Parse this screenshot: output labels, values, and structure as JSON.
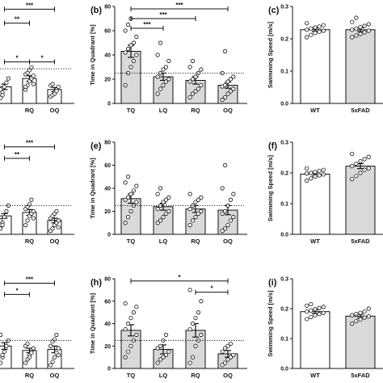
{
  "colors": {
    "wt_bar": "#ffffff",
    "fad_bar": "#d9d9d9",
    "stroke": "#111111",
    "point_fill": "#ffffff"
  },
  "panels": [
    {
      "letter": "",
      "chart_data": {
        "type": "bar",
        "ylabel": "",
        "ylim": [
          0,
          70
        ],
        "yticks": [],
        "categories": [
          "",
          "RQ",
          "OQ"
        ],
        "values": [
          12,
          18,
          10
        ],
        "errors": [
          2,
          2,
          1.5
        ],
        "points": [
          [
            4,
            8,
            12,
            15,
            18,
            10,
            6
          ],
          [
            10,
            13,
            16,
            18,
            20,
            21,
            22,
            24,
            26,
            14,
            12
          ],
          [
            5,
            6,
            8,
            10,
            12,
            13,
            14,
            7,
            9
          ]
        ],
        "fills": [
          "#ffffff",
          "#ffffff",
          "#ffffff"
        ],
        "chance_line": 25,
        "significance": [
          {
            "from": 0,
            "to": 2,
            "y": 68,
            "label": "***"
          },
          {
            "from": 0,
            "to": 1,
            "y": 58,
            "label": "**"
          },
          {
            "from": 0,
            "to": 0,
            "y": 50,
            "label": ""
          },
          {
            "from": 0,
            "to": 1,
            "y": 30,
            "label": "*"
          },
          {
            "from": 1,
            "to": 2,
            "y": 30,
            "label": "*"
          }
        ]
      }
    },
    {
      "letter": "(b)",
      "chart_data": {
        "type": "bar",
        "ylabel": "Time in Quadrant [%]",
        "ylim": [
          0,
          80
        ],
        "yticks": [
          0,
          20,
          40,
          60,
          80
        ],
        "categories": [
          "TQ",
          "LQ",
          "RQ",
          "OQ"
        ],
        "values": [
          43,
          22,
          19,
          15
        ],
        "errors": [
          5,
          3,
          3,
          2.5
        ],
        "points": [
          [
            15,
            25,
            30,
            35,
            40,
            42,
            45,
            48,
            50,
            55,
            60,
            65,
            70
          ],
          [
            8,
            12,
            15,
            18,
            20,
            22,
            25,
            28,
            30,
            35,
            40,
            50
          ],
          [
            5,
            8,
            10,
            12,
            15,
            18,
            20,
            22,
            25,
            28,
            30,
            35
          ],
          [
            3,
            5,
            8,
            10,
            12,
            14,
            15,
            18,
            20,
            22,
            25,
            43
          ]
        ],
        "fills": [
          "#d9d9d9",
          "#d9d9d9",
          "#d9d9d9",
          "#d9d9d9"
        ],
        "chance_line": 25,
        "significance": [
          {
            "from": 0,
            "to": 3,
            "y": 78,
            "label": "***"
          },
          {
            "from": 0,
            "to": 2,
            "y": 70,
            "label": "***"
          },
          {
            "from": 0,
            "to": 1,
            "y": 62,
            "label": "***"
          }
        ]
      }
    },
    {
      "letter": "(c)",
      "chart_data": {
        "type": "bar",
        "ylabel": "Swimming Speed [m/s]",
        "ylim": [
          0,
          0.3
        ],
        "yticks": [
          0.0,
          0.1,
          0.2,
          0.3
        ],
        "categories": [
          "WT",
          "5xFAD"
        ],
        "values": [
          0.228,
          0.228
        ],
        "errors": [
          0.005,
          0.006
        ],
        "points": [
          [
            0.205,
            0.212,
            0.218,
            0.222,
            0.225,
            0.228,
            0.232,
            0.235,
            0.238,
            0.242,
            0.248
          ],
          [
            0.205,
            0.21,
            0.215,
            0.22,
            0.225,
            0.228,
            0.232,
            0.236,
            0.24,
            0.245,
            0.252,
            0.265
          ]
        ],
        "fills": [
          "#ffffff",
          "#d9d9d9"
        ],
        "chance_line": null,
        "significance": []
      }
    },
    {
      "letter": "",
      "chart_data": {
        "type": "bar",
        "ylabel": "",
        "ylim": [
          0,
          80
        ],
        "yticks": [],
        "categories": [
          "",
          "RQ",
          "OQ"
        ],
        "values": [
          16,
          19,
          12
        ],
        "errors": [
          2,
          2.5,
          2
        ],
        "points": [
          [
            5,
            10,
            15,
            20,
            25,
            12,
            8
          ],
          [
            8,
            12,
            16,
            18,
            20,
            22,
            24,
            26,
            30,
            14
          ],
          [
            3,
            5,
            8,
            10,
            12,
            14,
            16,
            18,
            20,
            6
          ]
        ],
        "fills": [
          "#ffffff",
          "#ffffff",
          "#ffffff"
        ],
        "chance_line": 25,
        "significance": [
          {
            "from": 0,
            "to": 2,
            "y": 76,
            "label": "***"
          },
          {
            "from": 0,
            "to": 1,
            "y": 66,
            "label": "**"
          }
        ]
      }
    },
    {
      "letter": "(e)",
      "chart_data": {
        "type": "bar",
        "ylabel": "Time in Quadrant [%]",
        "ylim": [
          0,
          80
        ],
        "yticks": [
          0,
          20,
          40,
          60,
          80
        ],
        "categories": [
          "TQ",
          "LQ",
          "RQ",
          "OQ"
        ],
        "values": [
          31,
          24,
          22,
          21
        ],
        "errors": [
          4,
          3,
          3,
          4
        ],
        "points": [
          [
            10,
            15,
            20,
            25,
            28,
            30,
            32,
            35,
            38,
            42,
            45,
            50
          ],
          [
            10,
            12,
            15,
            18,
            20,
            22,
            25,
            28,
            30,
            32,
            35,
            40
          ],
          [
            8,
            12,
            15,
            18,
            20,
            22,
            25,
            28,
            30,
            32,
            35
          ],
          [
            3,
            5,
            8,
            12,
            15,
            18,
            20,
            25,
            30,
            35,
            40,
            60
          ]
        ],
        "fills": [
          "#d9d9d9",
          "#d9d9d9",
          "#d9d9d9",
          "#d9d9d9"
        ],
        "chance_line": 25,
        "significance": []
      }
    },
    {
      "letter": "(f)",
      "chart_data": {
        "type": "bar",
        "ylabel": "Swimming Speed [m/s]",
        "ylim": [
          0,
          0.3
        ],
        "yticks": [
          0.0,
          0.1,
          0.2,
          0.3
        ],
        "categories": [
          "WT",
          "5xFAD"
        ],
        "values": [
          0.196,
          0.222
        ],
        "errors": [
          0.006,
          0.008
        ],
        "points": [
          [
            0.175,
            0.182,
            0.188,
            0.192,
            0.195,
            0.198,
            0.2,
            0.203,
            0.206,
            0.21,
            0.215
          ],
          [
            0.18,
            0.19,
            0.2,
            0.21,
            0.215,
            0.222,
            0.23,
            0.238,
            0.245,
            0.252,
            0.262
          ]
        ],
        "fills": [
          "#ffffff",
          "#d9d9d9"
        ],
        "chance_line": null,
        "significance": []
      }
    },
    {
      "letter": "",
      "chart_data": {
        "type": "bar",
        "ylabel": "",
        "ylim": [
          0,
          80
        ],
        "yticks": [],
        "categories": [
          "",
          "RQ",
          "OQ"
        ],
        "values": [
          20,
          16,
          17
        ],
        "errors": [
          3,
          2,
          3
        ],
        "points": [
          [
            5,
            10,
            15,
            20,
            25,
            30,
            12
          ],
          [
            5,
            8,
            12,
            15,
            18,
            20,
            22,
            10,
            14
          ],
          [
            3,
            6,
            10,
            14,
            18,
            20,
            24,
            26,
            30,
            12
          ]
        ],
        "fills": [
          "#ffffff",
          "#ffffff",
          "#ffffff"
        ],
        "chance_line": 25,
        "significance": [
          {
            "from": 0,
            "to": 2,
            "y": 76,
            "label": "***"
          },
          {
            "from": 0,
            "to": 1,
            "y": 66,
            "label": "*"
          }
        ]
      }
    },
    {
      "letter": "(h)",
      "chart_data": {
        "type": "bar",
        "ylabel": "Time in Quadrant [%]",
        "ylim": [
          0,
          80
        ],
        "yticks": [
          0,
          20,
          40,
          60,
          80
        ],
        "categories": [
          "TQ",
          "LQ",
          "RQ",
          "OQ"
        ],
        "values": [
          34,
          17,
          34,
          13
        ],
        "errors": [
          5,
          4,
          6,
          3
        ],
        "points": [
          [
            10,
            15,
            20,
            25,
            30,
            35,
            40,
            45,
            50,
            55,
            58
          ],
          [
            5,
            8,
            10,
            12,
            15,
            18,
            20,
            25,
            30
          ],
          [
            5,
            10,
            20,
            25,
            30,
            35,
            40,
            45,
            50,
            60,
            70
          ],
          [
            3,
            5,
            8,
            10,
            12,
            15,
            18,
            20,
            22
          ]
        ],
        "fills": [
          "#d9d9d9",
          "#d9d9d9",
          "#d9d9d9",
          "#d9d9d9"
        ],
        "chance_line": 25,
        "significance": [
          {
            "from": 0,
            "to": 3,
            "y": 78,
            "label": "*"
          },
          {
            "from": 2,
            "to": 3,
            "y": 68,
            "label": "*"
          }
        ]
      }
    },
    {
      "letter": "(i)",
      "chart_data": {
        "type": "bar",
        "ylabel": "Swimming Speed [m/s]",
        "ylim": [
          0,
          0.3
        ],
        "yticks": [
          0.0,
          0.1,
          0.2,
          0.3
        ],
        "categories": [
          "WT",
          "5xFAD"
        ],
        "values": [
          0.19,
          0.175
        ],
        "errors": [
          0.006,
          0.006
        ],
        "points": [
          [
            0.165,
            0.172,
            0.178,
            0.182,
            0.186,
            0.19,
            0.194,
            0.198,
            0.202,
            0.206,
            0.21,
            0.215
          ],
          [
            0.15,
            0.158,
            0.164,
            0.17,
            0.174,
            0.178,
            0.182,
            0.186,
            0.19,
            0.2
          ]
        ],
        "fills": [
          "#ffffff",
          "#d9d9d9"
        ],
        "chance_line": null,
        "significance": []
      }
    }
  ]
}
